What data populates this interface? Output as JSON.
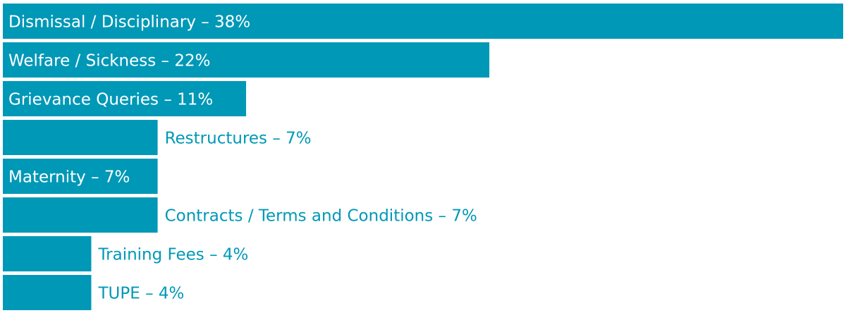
{
  "chart_data": {
    "type": "hbar",
    "categories": [
      "Dismissal / Disciplinary – 38%",
      "Welfare / Sickness – 22%",
      "Grievance Queries – 11%",
      "Restructures – 7%",
      "Maternity – 7%",
      "Contracts / Terms and Conditions – 7%",
      "Training Fees – 4%",
      "TUPE – 4%"
    ],
    "values": [
      38,
      22,
      11,
      7,
      7,
      7,
      4,
      4
    ],
    "color": "#0098b7",
    "xlim": [
      0,
      38
    ]
  }
}
